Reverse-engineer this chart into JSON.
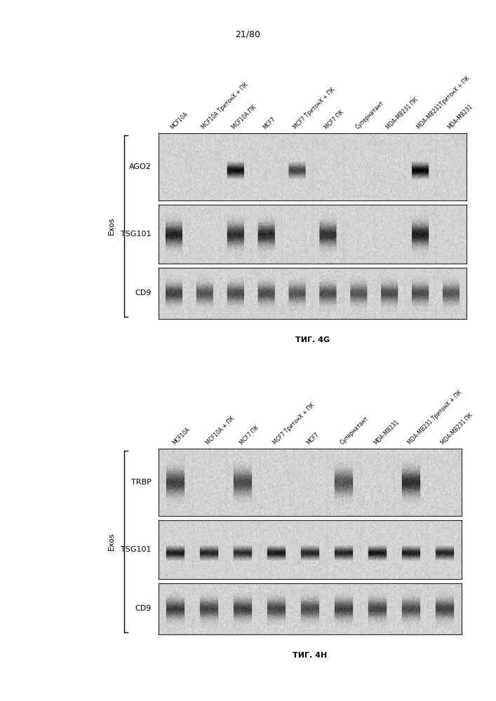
{
  "page_label": "21/80",
  "bg_color": "#ffffff",
  "text_color": "#000000",
  "fig_g": {
    "caption": "ΤИГ. 4G",
    "col_labels": [
      "MCF10A",
      "MCF10A ТритонX + ПК",
      "MCF10A ПК",
      "MCF7",
      "MCF7 ТритонX + ПК",
      "MCF7 ПК",
      "Супернатант",
      "MDA-MB231 ПК",
      "MDA-MB231ТритонX + ПК",
      "MDA-MB231"
    ],
    "row_labels": [
      "AGO2",
      "TSG101",
      "CD9"
    ],
    "bracket_label": "Exos",
    "n_cols": 10,
    "n_rows": 3,
    "ago2_bands": [
      0,
      0,
      0.85,
      0,
      0.6,
      0,
      0,
      0,
      0.9,
      0
    ],
    "tsg101_bands": [
      0.85,
      0,
      0.8,
      0.82,
      0,
      0.78,
      0,
      0,
      0.88,
      0
    ],
    "cd9_bands": [
      0.7,
      0.6,
      0.65,
      0.65,
      0.6,
      0.65,
      0.6,
      0.65,
      0.65,
      0.6
    ]
  },
  "fig_h": {
    "caption": "ΤИГ. 4H",
    "col_labels": [
      "MCF10A",
      "MCF10A + ПК",
      "MCF7 ПК",
      "MCF7 ТритонX + ПК",
      "MCF7",
      "Супернатант",
      "MDA-MB231",
      "MDA-MB231 ТритонX + ПК",
      "MDA-MB231 ПК"
    ],
    "row_labels": [
      "TRBP",
      "TSG101",
      "CD9"
    ],
    "bracket_label": "Exos",
    "n_cols": 9,
    "n_rows": 3,
    "trbp_bands": [
      0.7,
      0,
      0.65,
      0,
      0,
      0.6,
      0,
      0.8,
      0
    ],
    "tsg101_bands": [
      0.78,
      0.75,
      0.72,
      0.8,
      0.74,
      0.76,
      0.82,
      0.78,
      0.74
    ],
    "cd9_bands": [
      0.72,
      0.68,
      0.7,
      0.68,
      0.66,
      0.7,
      0.68,
      0.65,
      0.7
    ]
  }
}
